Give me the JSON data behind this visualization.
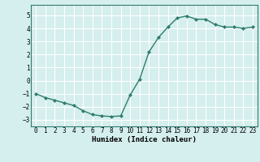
{
  "x": [
    0,
    1,
    2,
    3,
    4,
    5,
    6,
    7,
    8,
    9,
    10,
    11,
    12,
    13,
    14,
    15,
    16,
    17,
    18,
    19,
    20,
    21,
    22,
    23
  ],
  "y": [
    -1.0,
    -1.3,
    -1.5,
    -1.7,
    -1.9,
    -2.3,
    -2.6,
    -2.7,
    -2.75,
    -2.7,
    -1.1,
    0.1,
    2.2,
    3.3,
    4.1,
    4.8,
    4.95,
    4.7,
    4.7,
    4.3,
    4.1,
    4.1,
    4.0,
    4.1
  ],
  "line_color": "#2e7d6e",
  "marker": "D",
  "marker_size": 2.0,
  "xlabel": "Humidex (Indice chaleur)",
  "ylim": [
    -3.5,
    5.8
  ],
  "xlim": [
    -0.5,
    23.5
  ],
  "yticks": [
    -3,
    -2,
    -1,
    0,
    1,
    2,
    3,
    4,
    5
  ],
  "xticks": [
    0,
    1,
    2,
    3,
    4,
    5,
    6,
    7,
    8,
    9,
    10,
    11,
    12,
    13,
    14,
    15,
    16,
    17,
    18,
    19,
    20,
    21,
    22,
    23
  ],
  "bg_color": "#d5eeee",
  "grid_color": "#ffffff",
  "tick_fontsize": 5.5,
  "xlabel_fontsize": 6.5,
  "line_width": 1.0
}
